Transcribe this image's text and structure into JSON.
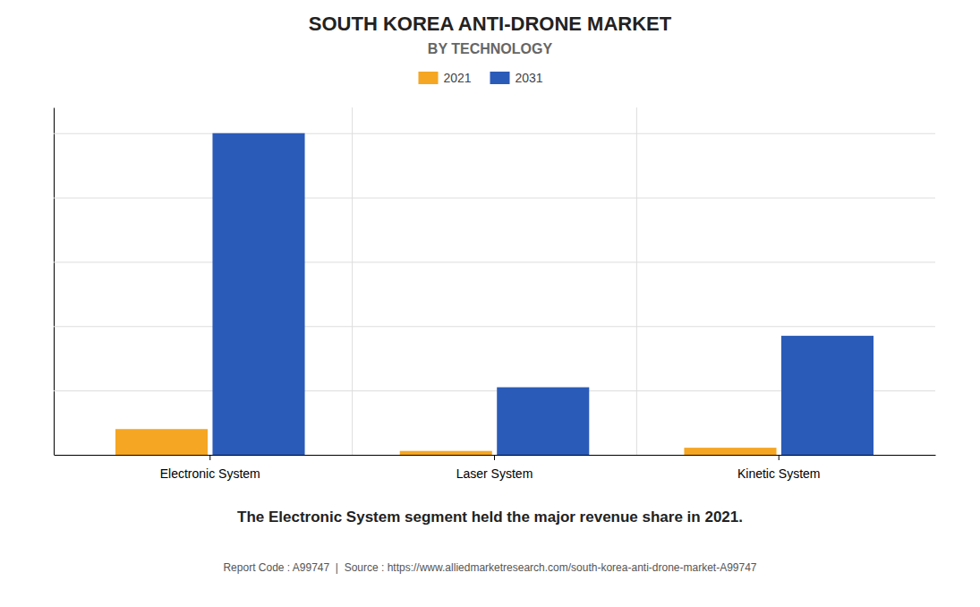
{
  "chart_data": {
    "type": "bar",
    "title": "SOUTH KOREA ANTI-DRONE MARKET",
    "subtitle": "BY TECHNOLOGY",
    "annotation": "The Electronic System segment held the major revenue share in 2021.",
    "footer": "Report Code : A99747  |  Source : https://www.alliedmarketresearch.com/south-korea-anti-drone-market-A99747",
    "categories": [
      "Electronic System",
      "Laser System",
      "Kinetic System"
    ],
    "series": [
      {
        "name": "2021",
        "color": "#F5A623",
        "values": [
          0.08,
          0.012,
          0.022
        ]
      },
      {
        "name": "2031",
        "color": "#2B5BB8",
        "values": [
          1.0,
          0.21,
          0.37
        ]
      }
    ],
    "ylim": [
      0,
      1.08
    ],
    "yticks": [
      0,
      0.2,
      0.4,
      0.6,
      0.8,
      1.0
    ],
    "grid": true,
    "legend": "top",
    "tick_labels": "x"
  }
}
